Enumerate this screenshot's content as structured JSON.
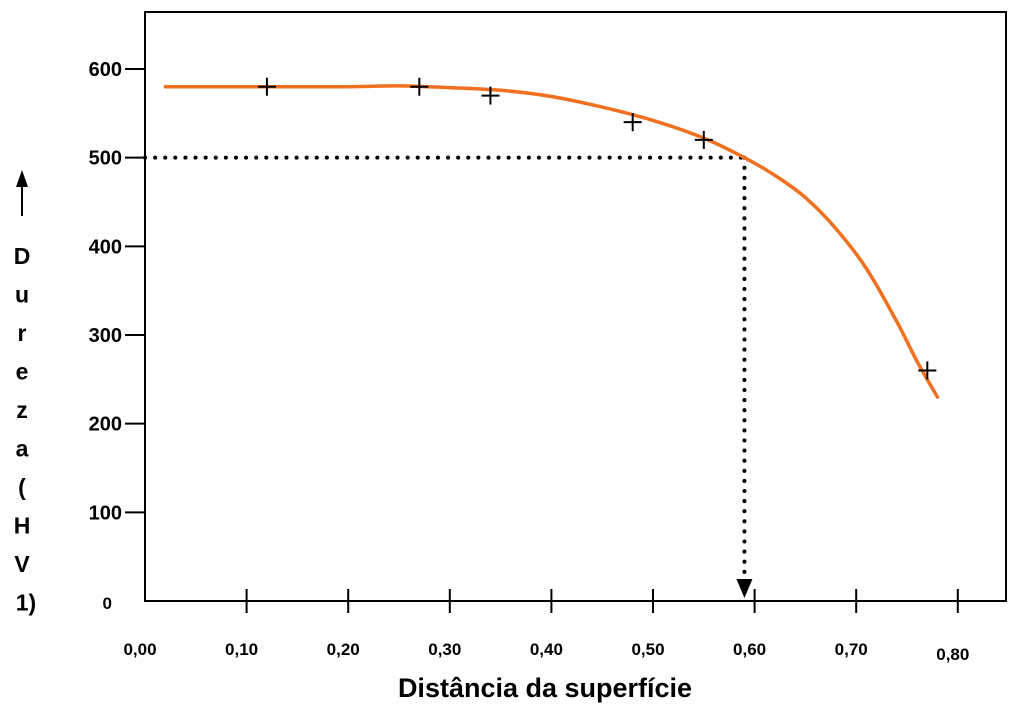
{
  "chart_data": {
    "type": "line",
    "xlabel": "Distância da superfície",
    "ylabel": "Dureza (HV 1)",
    "ylabel_letters": [
      "D",
      "u",
      "r",
      "e",
      "z",
      "a",
      "(",
      "H",
      "V",
      "1)"
    ],
    "xlim": [
      0.0,
      0.8
    ],
    "ylim": [
      0,
      600
    ],
    "x_ticks": [
      {
        "value": 0.0,
        "label": "0,00"
      },
      {
        "value": 0.1,
        "label": "0,10"
      },
      {
        "value": 0.2,
        "label": "0,20"
      },
      {
        "value": 0.3,
        "label": "0,30"
      },
      {
        "value": 0.4,
        "label": "0,40"
      },
      {
        "value": 0.5,
        "label": "0,50"
      },
      {
        "value": 0.6,
        "label": "0,60"
      },
      {
        "value": 0.7,
        "label": "0,70"
      },
      {
        "value": 0.8,
        "label": "0,80"
      }
    ],
    "y_ticks": [
      {
        "value": 0,
        "label": "0"
      },
      {
        "value": 100,
        "label": "100"
      },
      {
        "value": 200,
        "label": "200"
      },
      {
        "value": 300,
        "label": "300"
      },
      {
        "value": 400,
        "label": "400"
      },
      {
        "value": 500,
        "label": "500"
      },
      {
        "value": 600,
        "label": "600"
      }
    ],
    "grid": false,
    "measured_points": {
      "x": [
        0.12,
        0.27,
        0.34,
        0.48,
        0.55,
        0.77
      ],
      "y": [
        580,
        580,
        570,
        540,
        520,
        260
      ]
    },
    "fitted_curve": {
      "color": "#f07020",
      "x": [
        0.02,
        0.1,
        0.2,
        0.25,
        0.3,
        0.35,
        0.4,
        0.45,
        0.5,
        0.55,
        0.59,
        0.62,
        0.65,
        0.68,
        0.71,
        0.74,
        0.76,
        0.78
      ],
      "y": [
        580,
        580,
        580,
        581,
        579,
        576,
        569,
        557,
        542,
        522,
        500,
        480,
        455,
        420,
        375,
        315,
        270,
        230
      ]
    },
    "reference": {
      "hardness": 500,
      "depth": 0.59
    }
  }
}
